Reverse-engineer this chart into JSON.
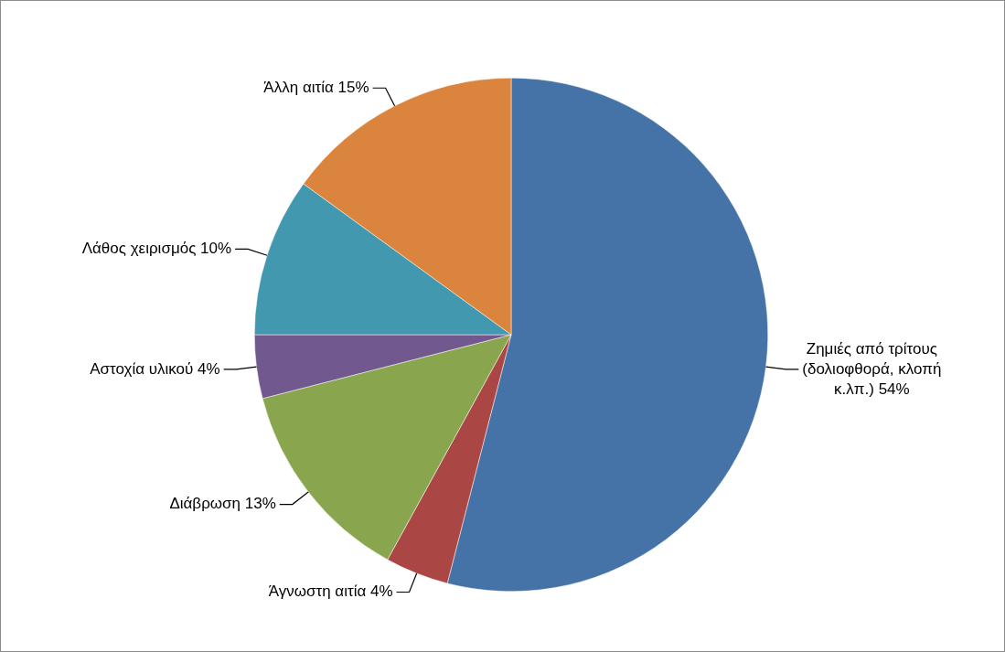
{
  "chart_data": {
    "type": "pie",
    "categories": [
      "Ζημιές από τρίτους (δολιοφθορά, κλοπή κ.λπ.)",
      "Άγνωστη αιτία",
      "Διάβρωση",
      "Αστοχία υλικού",
      "Λάθος χειρισμός",
      "Άλλη αιτία"
    ],
    "values": [
      54,
      4,
      13,
      4,
      10,
      15
    ],
    "value_labels": [
      "54%",
      "4%",
      "13%",
      "4%",
      "10%",
      "15%"
    ],
    "colors": [
      "#4572a7",
      "#aa4643",
      "#89a54e",
      "#71588f",
      "#4198af",
      "#db843d"
    ],
    "legend": false
  }
}
